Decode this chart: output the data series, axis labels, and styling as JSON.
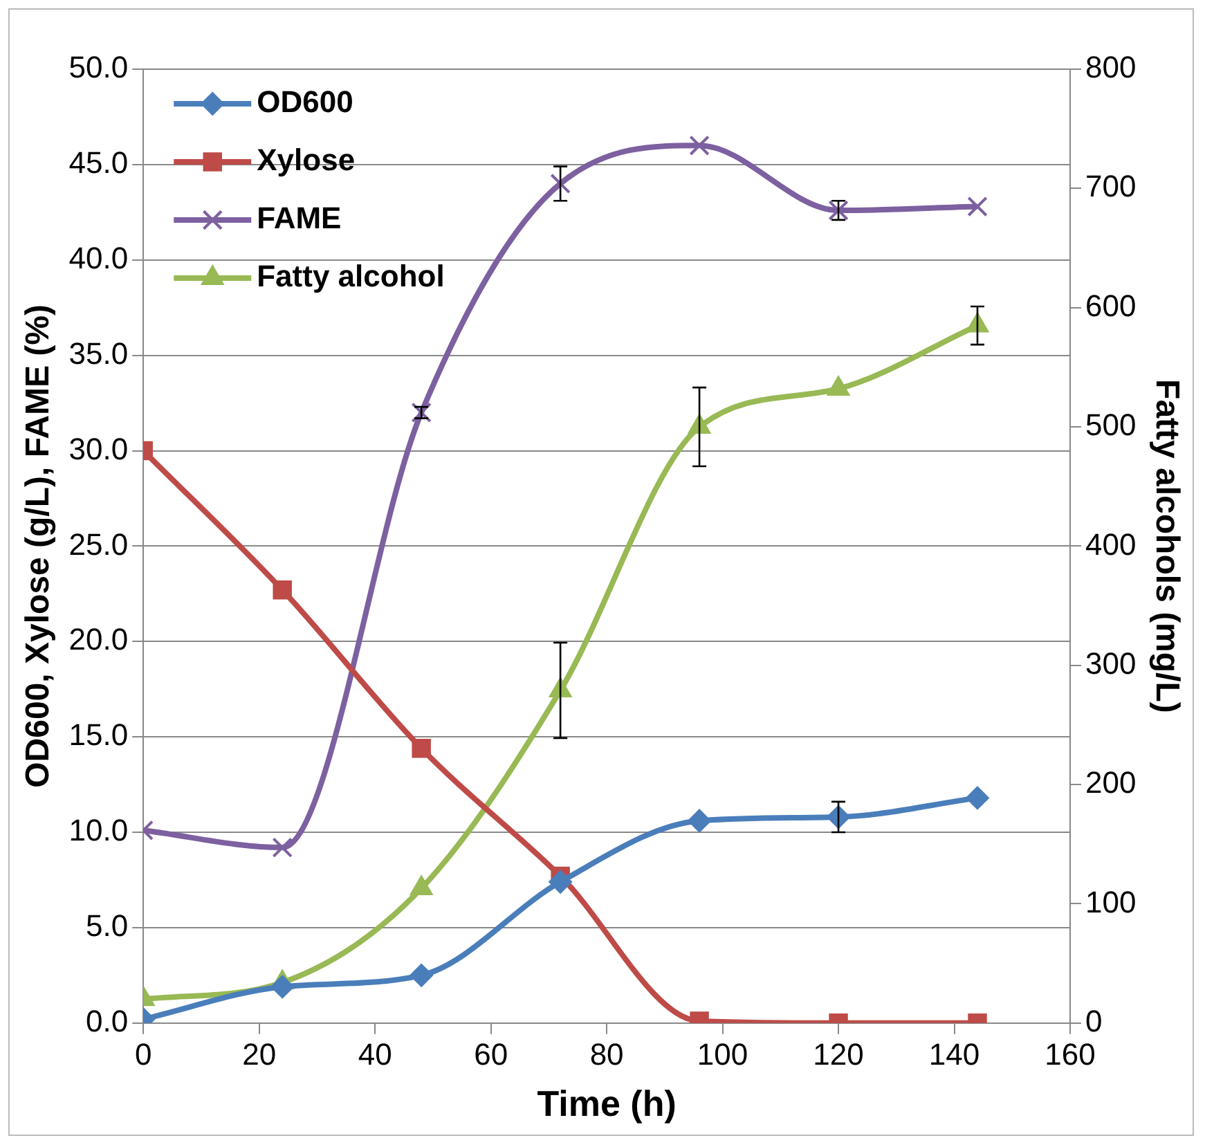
{
  "chart_data": {
    "type": "line",
    "xlabel": "Time (h)",
    "ylabel": "OD600, Xylose (g/L), FAME (%)",
    "y2label": "Fatty alcohols (mg/L)",
    "x": [
      0,
      24,
      48,
      72,
      96,
      120,
      144
    ],
    "xlim": [
      0,
      160
    ],
    "xticks": [
      0,
      20,
      40,
      60,
      80,
      100,
      120,
      140,
      160
    ],
    "ylim": [
      0,
      50
    ],
    "yticks": [
      {
        "value": 0,
        "label": "0.0"
      },
      {
        "value": 5,
        "label": "5.0"
      },
      {
        "value": 10,
        "label": "10.0"
      },
      {
        "value": 15,
        "label": "15.0"
      },
      {
        "value": 20,
        "label": "20.0"
      },
      {
        "value": 25,
        "label": "25.0"
      },
      {
        "value": 30,
        "label": "30.0"
      },
      {
        "value": 35,
        "label": "35.0"
      },
      {
        "value": 40,
        "label": "40.0"
      },
      {
        "value": 45,
        "label": "45.0"
      },
      {
        "value": 50,
        "label": "50.0"
      }
    ],
    "y2lim": [
      0,
      800
    ],
    "y2ticks": [
      0,
      100,
      200,
      300,
      400,
      500,
      600,
      700,
      800
    ],
    "grid": "y",
    "legend": "top left",
    "series": [
      {
        "name": "OD600",
        "color": "#4a7ebb",
        "marker": "diamond",
        "values": [
          0.2,
          1.9,
          2.5,
          7.4,
          10.6,
          10.8,
          11.8
        ],
        "errors": [
          null,
          null,
          null,
          null,
          null,
          0.8,
          null
        ]
      },
      {
        "name": "Xylose",
        "color": "#be4b48",
        "marker": "square",
        "values": [
          30.0,
          22.7,
          14.4,
          7.7,
          0.1,
          0,
          0
        ]
      },
      {
        "name": "FAME",
        "color": "#7d60a0",
        "marker": "cross",
        "values": [
          10.1,
          9.2,
          32.0,
          44.0,
          46.0,
          42.6,
          42.8
        ],
        "errors": [
          null,
          null,
          0.3,
          0.9,
          null,
          0.5,
          null
        ]
      },
      {
        "name": "Fatty alcohol",
        "color": "#98b954",
        "marker": "triangle",
        "axis": "y2",
        "values": [
          20,
          34,
          113,
          279,
          500,
          532,
          585
        ],
        "errors": [
          null,
          null,
          null,
          40,
          33,
          null,
          16
        ]
      }
    ]
  }
}
